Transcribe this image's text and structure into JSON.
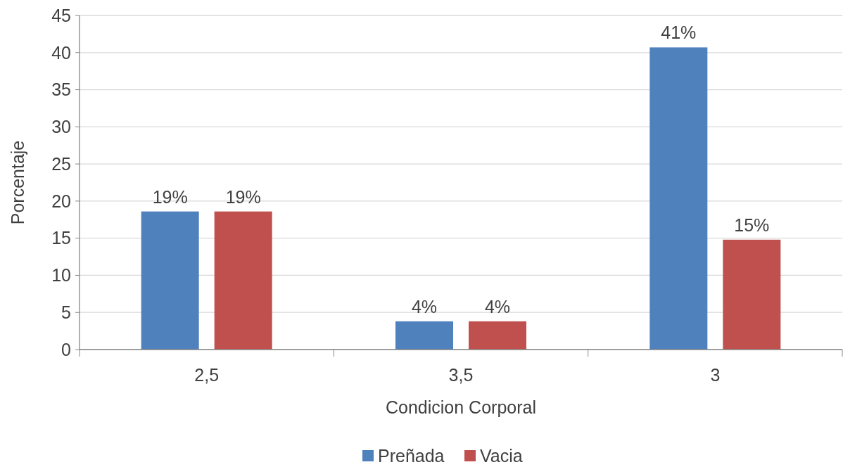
{
  "chart_data": {
    "type": "bar",
    "xlabel": "Condicion Corporal",
    "ylabel": "Porcentaje",
    "categories": [
      "2,5",
      "3,5",
      "3"
    ],
    "series": [
      {
        "name": "Preñada",
        "color": "#4f81bd",
        "values": [
          18.6,
          3.8,
          40.7
        ],
        "value_labels": [
          "19%",
          "4%",
          "41%"
        ]
      },
      {
        "name": "Vacia",
        "color": "#c0504d",
        "values": [
          18.6,
          3.8,
          14.8
        ],
        "value_labels": [
          "19%",
          "4%",
          "15%"
        ]
      }
    ],
    "ylim": [
      0,
      45
    ],
    "yticks": [
      0,
      5,
      10,
      15,
      20,
      25,
      30,
      35,
      40,
      45
    ],
    "grid": "y",
    "legend": "bottom"
  }
}
